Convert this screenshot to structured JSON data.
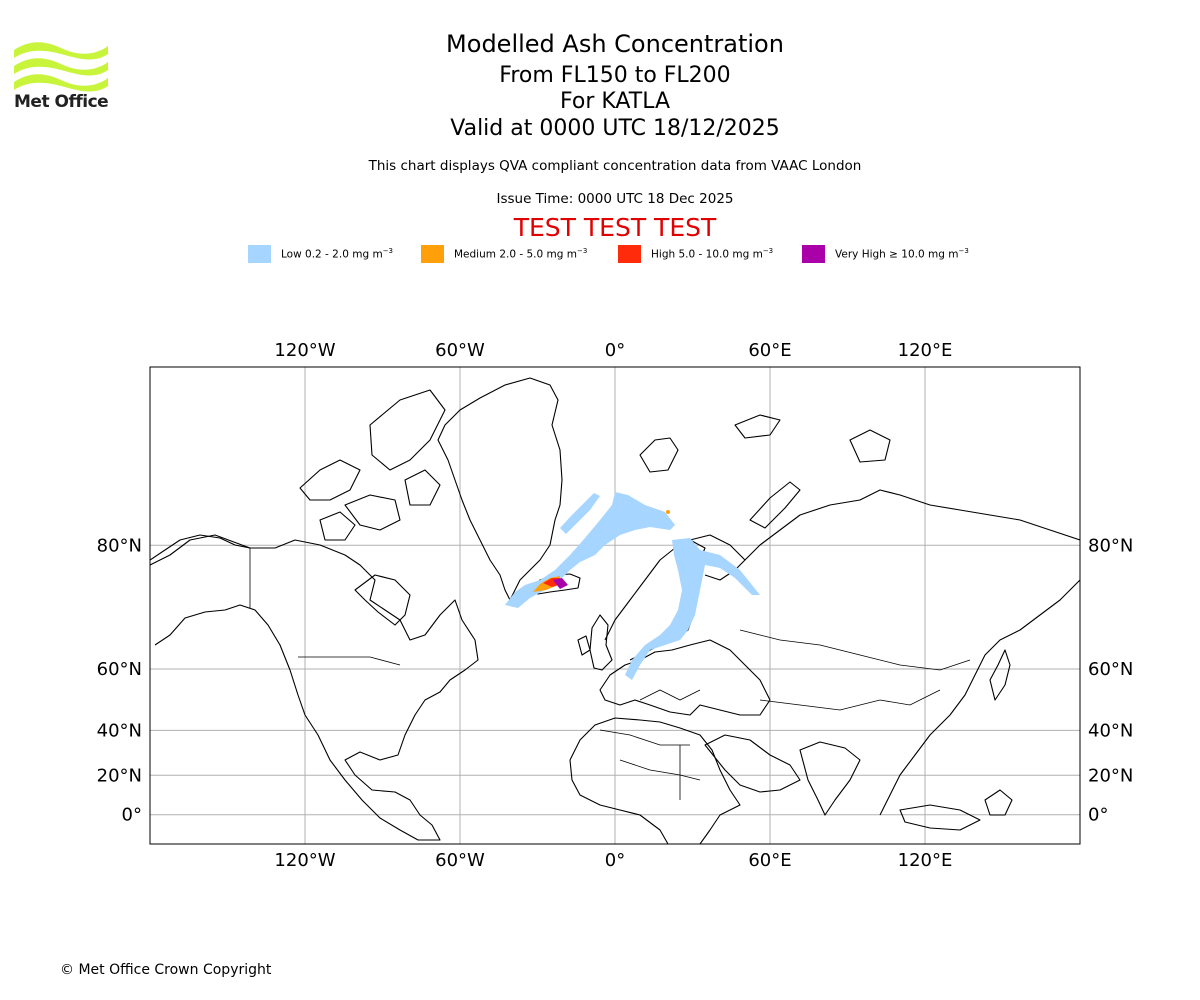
{
  "header": {
    "logo_text": "Met Office",
    "title": "Modelled Ash Concentration",
    "level_range": "From FL150 to FL200",
    "volcano": "For KATLA",
    "valid_time": "Valid at 0000 UTC 18/12/2025",
    "description": "This chart displays QVA compliant concentration data from VAAC London",
    "issue_time": "Issue Time: 0000 UTC 18 Dec 2025",
    "test_banner": "TEST TEST TEST"
  },
  "legend": [
    {
      "label": "Low 0.2 - 2.0 mg m",
      "unit_exp": "−3",
      "color": "#a6d5ff"
    },
    {
      "label": "Medium 2.0 - 5.0 mg m",
      "unit_exp": "−3",
      "color": "#ff9f0a"
    },
    {
      "label": "High 5.0 - 10.0 mg m",
      "unit_exp": "−3",
      "color": "#ff2b0a"
    },
    {
      "label": "Very High  ≥  10.0 mg m",
      "unit_exp": "−3",
      "color": "#aa00aa"
    }
  ],
  "map": {
    "projection": "mercator",
    "lon_range": [
      -180,
      180
    ],
    "lat_range": [
      -15,
      88
    ],
    "lon_ticks": [
      {
        "value": -120,
        "label": "120°W"
      },
      {
        "value": -60,
        "label": "60°W"
      },
      {
        "value": 0,
        "label": "0°"
      },
      {
        "value": 60,
        "label": "60°E"
      },
      {
        "value": 120,
        "label": "120°E"
      }
    ],
    "lat_ticks": [
      {
        "value": 80,
        "label": "80°N"
      },
      {
        "value": 60,
        "label": "60°N"
      },
      {
        "value": 40,
        "label": "40°N"
      },
      {
        "value": 20,
        "label": "20°N"
      },
      {
        "value": 0,
        "label": "0°"
      }
    ]
  },
  "footer": {
    "copyright": "© Met Office Crown Copyright"
  }
}
